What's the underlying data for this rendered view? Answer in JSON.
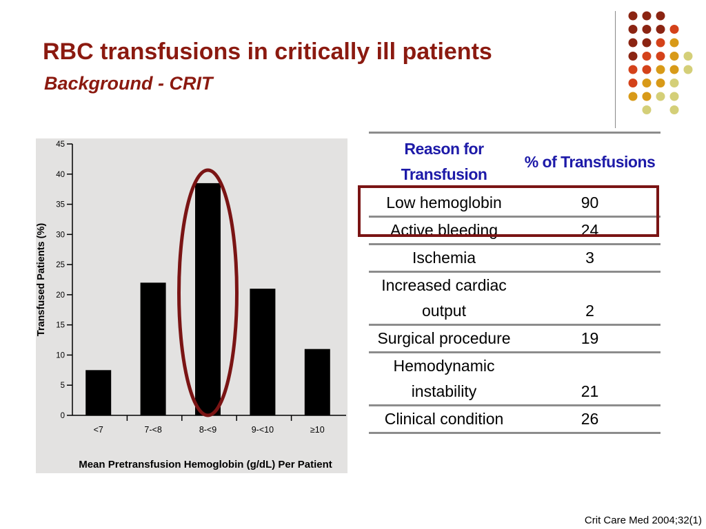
{
  "slide": {
    "title": "RBC transfusions in critically ill patients",
    "subtitle": "Background - CRIT",
    "citation": "Crit Care Med 2004;32(1)"
  },
  "decor": {
    "dot_colors": [
      "#8b2412",
      "#d4421a",
      "#d89a18",
      "#d4cf78"
    ]
  },
  "chart_data": {
    "type": "bar",
    "categories": [
      "<7",
      "7-<8",
      "8-<9",
      "9-<10",
      "≥10"
    ],
    "values": [
      7.5,
      22,
      38.5,
      21,
      11
    ],
    "xlabel": "Mean Pretransfusion Hemoglobin (g/dL) Per Patient",
    "ylabel": "Transfused Patients (%)",
    "ylim": [
      0,
      45
    ],
    "yticks": [
      0,
      5,
      10,
      15,
      20,
      25,
      30,
      35,
      40,
      45
    ],
    "grid": false,
    "highlighted_category": "8-<9",
    "bar_color": "#000000",
    "highlight_color": "#7a1414"
  },
  "table": {
    "headers": [
      "Reason for Transfusion",
      "% of Transfusions"
    ],
    "rows": [
      {
        "reason": "Low hemoglobin",
        "percent": "90",
        "highlight": true
      },
      {
        "reason": "Active bleeding",
        "percent": "24",
        "highlight": true
      },
      {
        "reason": "Ischemia",
        "percent": "3"
      },
      {
        "reason": "Increased cardiac output",
        "percent": "2"
      },
      {
        "reason": "Surgical procedure",
        "percent": "19"
      },
      {
        "reason": "Hemodynamic instability",
        "percent": "21"
      },
      {
        "reason": "Clinical condition",
        "percent": "26"
      }
    ]
  }
}
